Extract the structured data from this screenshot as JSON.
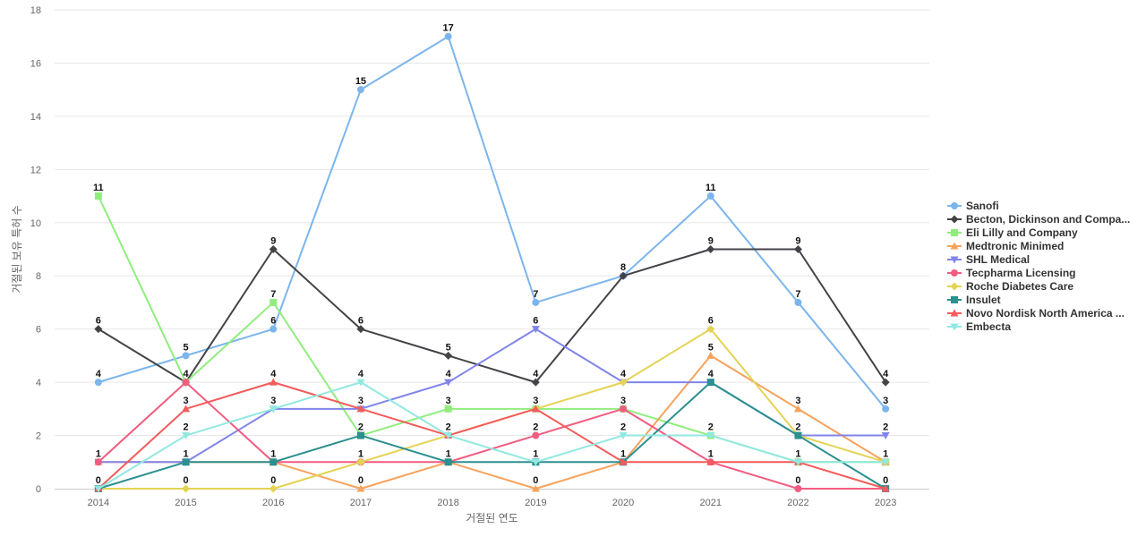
{
  "chart_data": {
    "type": "line",
    "title": "",
    "xlabel": "거절된 연도",
    "ylabel": "거절된 보유 특허 수",
    "x": [
      "2014",
      "2015",
      "2016",
      "2017",
      "2018",
      "2019",
      "2020",
      "2021",
      "2022",
      "2023"
    ],
    "ylim": [
      0,
      18
    ],
    "yticks": [
      0,
      2,
      4,
      6,
      8,
      10,
      12,
      14,
      16,
      18
    ],
    "grid": true,
    "legend_position": "right",
    "series": [
      {
        "name": "Sanofi",
        "color": "#7cb5ec",
        "marker": "circle",
        "values": [
          4,
          5,
          6,
          15,
          17,
          7,
          8,
          11,
          7,
          3
        ]
      },
      {
        "name": "Becton, Dickinson and Compa...",
        "color": "#434348",
        "marker": "diamond",
        "values": [
          6,
          4,
          9,
          6,
          5,
          4,
          8,
          9,
          9,
          4
        ]
      },
      {
        "name": "Eli Lilly and Company",
        "color": "#90ed7d",
        "marker": "square",
        "values": [
          11,
          4,
          7,
          2,
          3,
          3,
          3,
          2,
          1,
          1
        ]
      },
      {
        "name": "Medtronic Minimed",
        "color": "#f7a35c",
        "marker": "triangle",
        "values": [
          1,
          1,
          1,
          0,
          1,
          0,
          1,
          5,
          3,
          1
        ]
      },
      {
        "name": "SHL Medical",
        "color": "#8085e9",
        "marker": "triangle-down",
        "values": [
          1,
          1,
          3,
          3,
          4,
          6,
          4,
          4,
          2,
          2
        ]
      },
      {
        "name": "Tecpharma Licensing",
        "color": "#f15c80",
        "marker": "circle",
        "values": [
          1,
          4,
          1,
          1,
          1,
          2,
          3,
          1,
          0,
          0
        ]
      },
      {
        "name": "Roche Diabetes Care",
        "color": "#e4d354",
        "marker": "diamond",
        "values": [
          0,
          0,
          0,
          1,
          2,
          3,
          4,
          6,
          2,
          1
        ]
      },
      {
        "name": "Insulet",
        "color": "#2b908f",
        "marker": "square",
        "values": [
          0,
          1,
          1,
          2,
          1,
          1,
          1,
          4,
          2,
          0
        ]
      },
      {
        "name": "Novo Nordisk North America ...",
        "color": "#f45b5b",
        "marker": "triangle",
        "values": [
          0,
          3,
          4,
          3,
          2,
          3,
          1,
          1,
          1,
          0
        ]
      },
      {
        "name": "Embecta",
        "color": "#91e8e1",
        "marker": "triangle-down",
        "values": [
          0,
          2,
          3,
          4,
          2,
          1,
          2,
          2,
          1,
          1
        ]
      }
    ],
    "data_labels": [
      {
        "x": "2014",
        "text": "11",
        "value": 11
      },
      {
        "x": "2014",
        "text": "6",
        "value": 6
      },
      {
        "x": "2014",
        "text": "4",
        "value": 4
      },
      {
        "x": "2014",
        "text": "1",
        "value": 1
      },
      {
        "x": "2014",
        "text": "0",
        "value": 0
      },
      {
        "x": "2015",
        "text": "5",
        "value": 5
      },
      {
        "x": "2015",
        "text": "4",
        "value": 4
      },
      {
        "x": "2015",
        "text": "3",
        "value": 3
      },
      {
        "x": "2015",
        "text": "2",
        "value": 2
      },
      {
        "x": "2015",
        "text": "1",
        "value": 1
      },
      {
        "x": "2015",
        "text": "0",
        "value": 0
      },
      {
        "x": "2016",
        "text": "9",
        "value": 9
      },
      {
        "x": "2016",
        "text": "7",
        "value": 7
      },
      {
        "x": "2016",
        "text": "6",
        "value": 6
      },
      {
        "x": "2016",
        "text": "4",
        "value": 4
      },
      {
        "x": "2016",
        "text": "3",
        "value": 3
      },
      {
        "x": "2016",
        "text": "1",
        "value": 1
      },
      {
        "x": "2016",
        "text": "0",
        "value": 0
      },
      {
        "x": "2017",
        "text": "15",
        "value": 15
      },
      {
        "x": "2017",
        "text": "6",
        "value": 6
      },
      {
        "x": "2017",
        "text": "4",
        "value": 4
      },
      {
        "x": "2017",
        "text": "3",
        "value": 3
      },
      {
        "x": "2017",
        "text": "2",
        "value": 2
      },
      {
        "x": "2017",
        "text": "1",
        "value": 1
      },
      {
        "x": "2017",
        "text": "0",
        "value": 0
      },
      {
        "x": "2018",
        "text": "17",
        "value": 17
      },
      {
        "x": "2018",
        "text": "5",
        "value": 5
      },
      {
        "x": "2018",
        "text": "4",
        "value": 4
      },
      {
        "x": "2018",
        "text": "3",
        "value": 3
      },
      {
        "x": "2018",
        "text": "2",
        "value": 2
      },
      {
        "x": "2018",
        "text": "1",
        "value": 1
      },
      {
        "x": "2019",
        "text": "7",
        "value": 7
      },
      {
        "x": "2019",
        "text": "6",
        "value": 6
      },
      {
        "x": "2019",
        "text": "4",
        "value": 4
      },
      {
        "x": "2019",
        "text": "3",
        "value": 3
      },
      {
        "x": "2019",
        "text": "2",
        "value": 2
      },
      {
        "x": "2019",
        "text": "1",
        "value": 1
      },
      {
        "x": "2019",
        "text": "0",
        "value": 0
      },
      {
        "x": "2020",
        "text": "8",
        "value": 8
      },
      {
        "x": "2020",
        "text": "4",
        "value": 4
      },
      {
        "x": "2020",
        "text": "3",
        "value": 3
      },
      {
        "x": "2020",
        "text": "2",
        "value": 2
      },
      {
        "x": "2020",
        "text": "1",
        "value": 1
      },
      {
        "x": "2021",
        "text": "11",
        "value": 11
      },
      {
        "x": "2021",
        "text": "9",
        "value": 9
      },
      {
        "x": "2021",
        "text": "6",
        "value": 6
      },
      {
        "x": "2021",
        "text": "5",
        "value": 5
      },
      {
        "x": "2021",
        "text": "4",
        "value": 4
      },
      {
        "x": "2021",
        "text": "2",
        "value": 2
      },
      {
        "x": "2021",
        "text": "1",
        "value": 1
      },
      {
        "x": "2022",
        "text": "9",
        "value": 9
      },
      {
        "x": "2022",
        "text": "7",
        "value": 7
      },
      {
        "x": "2022",
        "text": "3",
        "value": 3
      },
      {
        "x": "2022",
        "text": "2",
        "value": 2
      },
      {
        "x": "2022",
        "text": "1",
        "value": 1
      },
      {
        "x": "2022",
        "text": "0",
        "value": 0
      },
      {
        "x": "2023",
        "text": "4",
        "value": 4
      },
      {
        "x": "2023",
        "text": "3",
        "value": 3
      },
      {
        "x": "2023",
        "text": "2",
        "value": 2
      },
      {
        "x": "2023",
        "text": "1",
        "value": 1
      },
      {
        "x": "2023",
        "text": "0",
        "value": 0
      }
    ]
  }
}
